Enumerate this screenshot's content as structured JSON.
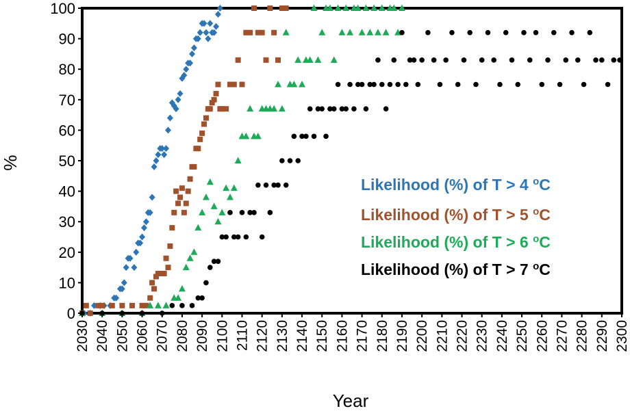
{
  "chart_data": {
    "type": "scatter",
    "xlabel": "Year",
    "ylabel": "%",
    "xlim": [
      2030,
      2300
    ],
    "ylim": [
      0,
      100
    ],
    "x_ticks": [
      "2030",
      "2040",
      "2050",
      "2060",
      "2070",
      "2080",
      "2090",
      "2100",
      "2110",
      "2120",
      "2130",
      "2140",
      "2150",
      "2160",
      "2170",
      "2180",
      "2190",
      "2200",
      "2210",
      "2220",
      "2230",
      "2240",
      "2250",
      "2260",
      "2270",
      "2280",
      "2290",
      "2300"
    ],
    "y_ticks": [
      "0",
      "10",
      "20",
      "30",
      "40",
      "50",
      "60",
      "70",
      "80",
      "90",
      "100"
    ],
    "grid": false,
    "legend_position": "right",
    "series": [
      {
        "name": "Likelihood (%)  of T > 4 ",
        "name_unit_prefix": "o",
        "name_unit": "C",
        "color": "#2E75B6",
        "marker": "diamond",
        "points": [
          [
            2031,
            0
          ],
          [
            2034,
            0
          ],
          [
            2036,
            2.5
          ],
          [
            2039,
            2.5
          ],
          [
            2041,
            2.5
          ],
          [
            2044,
            2.5
          ],
          [
            2046,
            5
          ],
          [
            2047,
            5
          ],
          [
            2049,
            8
          ],
          [
            2050,
            8
          ],
          [
            2051,
            10
          ],
          [
            2052,
            15
          ],
          [
            2053,
            18
          ],
          [
            2054,
            18
          ],
          [
            2056,
            15
          ],
          [
            2057,
            20
          ],
          [
            2058,
            23
          ],
          [
            2059,
            23
          ],
          [
            2060,
            25
          ],
          [
            2061,
            28
          ],
          [
            2062,
            30
          ],
          [
            2063,
            33
          ],
          [
            2064,
            33
          ],
          [
            2065,
            38
          ],
          [
            2066,
            48
          ],
          [
            2067,
            50
          ],
          [
            2068,
            52
          ],
          [
            2069,
            54
          ],
          [
            2070,
            54
          ],
          [
            2071,
            52
          ],
          [
            2072,
            54
          ],
          [
            2073,
            60
          ],
          [
            2074,
            64
          ],
          [
            2075,
            69
          ],
          [
            2076,
            68
          ],
          [
            2077,
            67
          ],
          [
            2078,
            70
          ],
          [
            2079,
            72
          ],
          [
            2080,
            77
          ],
          [
            2081,
            78
          ],
          [
            2082,
            80
          ],
          [
            2083,
            82
          ],
          [
            2084,
            82
          ],
          [
            2085,
            85
          ],
          [
            2086,
            87
          ],
          [
            2087,
            90
          ],
          [
            2088,
            90
          ],
          [
            2089,
            92
          ],
          [
            2090,
            95
          ],
          [
            2091,
            95
          ],
          [
            2092,
            92
          ],
          [
            2093,
            90
          ],
          [
            2094,
            95
          ],
          [
            2095,
            92
          ],
          [
            2096,
            92
          ],
          [
            2097,
            94
          ],
          [
            2098,
            98
          ],
          [
            2099,
            100
          ]
        ]
      },
      {
        "name": "Likelihood (%)  of T > 5 ",
        "name_unit_prefix": "o",
        "name_unit": "C",
        "color": "#A0522D",
        "marker": "square",
        "points": [
          [
            2030,
            0
          ],
          [
            2032,
            2.5
          ],
          [
            2034,
            0
          ],
          [
            2038,
            2.5
          ],
          [
            2040,
            2.5
          ],
          [
            2045,
            2.5
          ],
          [
            2050,
            2.5
          ],
          [
            2055,
            2.5
          ],
          [
            2060,
            2.5
          ],
          [
            2062,
            2.5
          ],
          [
            2064,
            5
          ],
          [
            2065,
            10
          ],
          [
            2066,
            8
          ],
          [
            2067,
            12
          ],
          [
            2068,
            13
          ],
          [
            2069,
            13
          ],
          [
            2070,
            13
          ],
          [
            2071,
            13
          ],
          [
            2072,
            18
          ],
          [
            2073,
            15
          ],
          [
            2074,
            22
          ],
          [
            2075,
            28
          ],
          [
            2076,
            33
          ],
          [
            2077,
            40
          ],
          [
            2078,
            36
          ],
          [
            2079,
            38
          ],
          [
            2080,
            41
          ],
          [
            2081,
            33
          ],
          [
            2082,
            36
          ],
          [
            2083,
            40
          ],
          [
            2084,
            44
          ],
          [
            2085,
            48
          ],
          [
            2086,
            48
          ],
          [
            2087,
            54
          ],
          [
            2088,
            54
          ],
          [
            2089,
            57
          ],
          [
            2090,
            59
          ],
          [
            2091,
            62
          ],
          [
            2092,
            64
          ],
          [
            2093,
            67
          ],
          [
            2094,
            67
          ],
          [
            2095,
            69
          ],
          [
            2096,
            70
          ],
          [
            2097,
            72
          ],
          [
            2098,
            75
          ],
          [
            2099,
            67
          ],
          [
            2100,
            67
          ],
          [
            2102,
            67
          ],
          [
            2104,
            75
          ],
          [
            2106,
            75
          ],
          [
            2108,
            83
          ],
          [
            2110,
            75
          ],
          [
            2112,
            92
          ],
          [
            2114,
            92
          ],
          [
            2116,
            100
          ],
          [
            2118,
            92
          ],
          [
            2120,
            92
          ],
          [
            2122,
            83
          ],
          [
            2124,
            100
          ],
          [
            2126,
            92
          ],
          [
            2128,
            83
          ],
          [
            2130,
            100
          ],
          [
            2132,
            100
          ]
        ]
      },
      {
        "name": "Likelihood (%)  of T > 6 ",
        "name_unit_prefix": "o",
        "name_unit": "C",
        "color": "#1FAA59",
        "marker": "triangle",
        "points": [
          [
            2030,
            0
          ],
          [
            2040,
            0
          ],
          [
            2050,
            0
          ],
          [
            2060,
            0
          ],
          [
            2064,
            2.5
          ],
          [
            2068,
            2.5
          ],
          [
            2072,
            2.5
          ],
          [
            2076,
            5
          ],
          [
            2078,
            5
          ],
          [
            2080,
            8
          ],
          [
            2082,
            15
          ],
          [
            2084,
            18
          ],
          [
            2086,
            20
          ],
          [
            2088,
            28
          ],
          [
            2090,
            33
          ],
          [
            2092,
            38
          ],
          [
            2094,
            43
          ],
          [
            2096,
            35
          ],
          [
            2098,
            30
          ],
          [
            2100,
            33
          ],
          [
            2102,
            41
          ],
          [
            2104,
            38
          ],
          [
            2106,
            41
          ],
          [
            2108,
            50
          ],
          [
            2110,
            58
          ],
          [
            2112,
            58
          ],
          [
            2114,
            67
          ],
          [
            2116,
            58
          ],
          [
            2118,
            58
          ],
          [
            2120,
            67
          ],
          [
            2122,
            67
          ],
          [
            2124,
            67
          ],
          [
            2126,
            67
          ],
          [
            2128,
            75
          ],
          [
            2130,
            67
          ],
          [
            2132,
            92
          ],
          [
            2134,
            75
          ],
          [
            2136,
            75
          ],
          [
            2138,
            83
          ],
          [
            2140,
            75
          ],
          [
            2142,
            83
          ],
          [
            2144,
            83
          ],
          [
            2146,
            100
          ],
          [
            2148,
            83
          ],
          [
            2150,
            92
          ],
          [
            2152,
            100
          ],
          [
            2154,
            100
          ],
          [
            2156,
            83
          ],
          [
            2158,
            100
          ],
          [
            2160,
            92
          ],
          [
            2162,
            100
          ],
          [
            2164,
            92
          ],
          [
            2166,
            100
          ],
          [
            2168,
            100
          ],
          [
            2170,
            92
          ],
          [
            2172,
            100
          ],
          [
            2174,
            92
          ],
          [
            2176,
            100
          ],
          [
            2178,
            92
          ],
          [
            2180,
            100
          ],
          [
            2182,
            92
          ],
          [
            2184,
            100
          ],
          [
            2186,
            100
          ],
          [
            2188,
            92
          ],
          [
            2190,
            100
          ]
        ]
      },
      {
        "name": "Likelihood (%)  of T > 7 ",
        "name_unit_prefix": "o",
        "name_unit": "C",
        "color": "#000000",
        "marker": "circle",
        "points": [
          [
            2030,
            0
          ],
          [
            2040,
            0
          ],
          [
            2050,
            0
          ],
          [
            2060,
            0
          ],
          [
            2070,
            0
          ],
          [
            2075,
            2.5
          ],
          [
            2080,
            2.5
          ],
          [
            2085,
            2.5
          ],
          [
            2088,
            5
          ],
          [
            2090,
            5
          ],
          [
            2092,
            10
          ],
          [
            2094,
            15
          ],
          [
            2096,
            17
          ],
          [
            2098,
            17
          ],
          [
            2100,
            25
          ],
          [
            2102,
            25
          ],
          [
            2104,
            33
          ],
          [
            2106,
            25
          ],
          [
            2108,
            25
          ],
          [
            2110,
            33
          ],
          [
            2112,
            25
          ],
          [
            2114,
            33
          ],
          [
            2116,
            33
          ],
          [
            2118,
            42
          ],
          [
            2120,
            25
          ],
          [
            2122,
            42
          ],
          [
            2124,
            33
          ],
          [
            2126,
            42
          ],
          [
            2128,
            42
          ],
          [
            2130,
            50
          ],
          [
            2132,
            42
          ],
          [
            2134,
            50
          ],
          [
            2136,
            58
          ],
          [
            2138,
            50
          ],
          [
            2140,
            58
          ],
          [
            2142,
            58
          ],
          [
            2144,
            67
          ],
          [
            2146,
            58
          ],
          [
            2148,
            67
          ],
          [
            2150,
            67
          ],
          [
            2152,
            58
          ],
          [
            2154,
            67
          ],
          [
            2156,
            67
          ],
          [
            2158,
            75
          ],
          [
            2160,
            67
          ],
          [
            2162,
            67
          ],
          [
            2164,
            75
          ],
          [
            2166,
            67
          ],
          [
            2168,
            75
          ],
          [
            2170,
            75
          ],
          [
            2172,
            67
          ],
          [
            2174,
            75
          ],
          [
            2176,
            75
          ],
          [
            2178,
            83
          ],
          [
            2180,
            75
          ],
          [
            2182,
            67
          ],
          [
            2184,
            75
          ],
          [
            2186,
            83
          ],
          [
            2188,
            75
          ],
          [
            2190,
            92
          ],
          [
            2192,
            75
          ],
          [
            2194,
            83
          ],
          [
            2196,
            83
          ],
          [
            2198,
            75
          ],
          [
            2200,
            83
          ],
          [
            2203,
            92
          ],
          [
            2206,
            83
          ],
          [
            2209,
            75
          ],
          [
            2212,
            83
          ],
          [
            2215,
            92
          ],
          [
            2218,
            75
          ],
          [
            2221,
            83
          ],
          [
            2224,
            92
          ],
          [
            2227,
            75
          ],
          [
            2230,
            83
          ],
          [
            2233,
            92
          ],
          [
            2236,
            83
          ],
          [
            2239,
            75
          ],
          [
            2242,
            92
          ],
          [
            2245,
            83
          ],
          [
            2248,
            75
          ],
          [
            2251,
            92
          ],
          [
            2254,
            83
          ],
          [
            2257,
            92
          ],
          [
            2260,
            75
          ],
          [
            2263,
            83
          ],
          [
            2266,
            92
          ],
          [
            2269,
            75
          ],
          [
            2272,
            83
          ],
          [
            2275,
            92
          ],
          [
            2278,
            83
          ],
          [
            2281,
            75
          ],
          [
            2284,
            92
          ],
          [
            2287,
            83
          ],
          [
            2290,
            83
          ],
          [
            2293,
            75
          ],
          [
            2296,
            83
          ],
          [
            2299,
            83
          ]
        ]
      }
    ]
  }
}
